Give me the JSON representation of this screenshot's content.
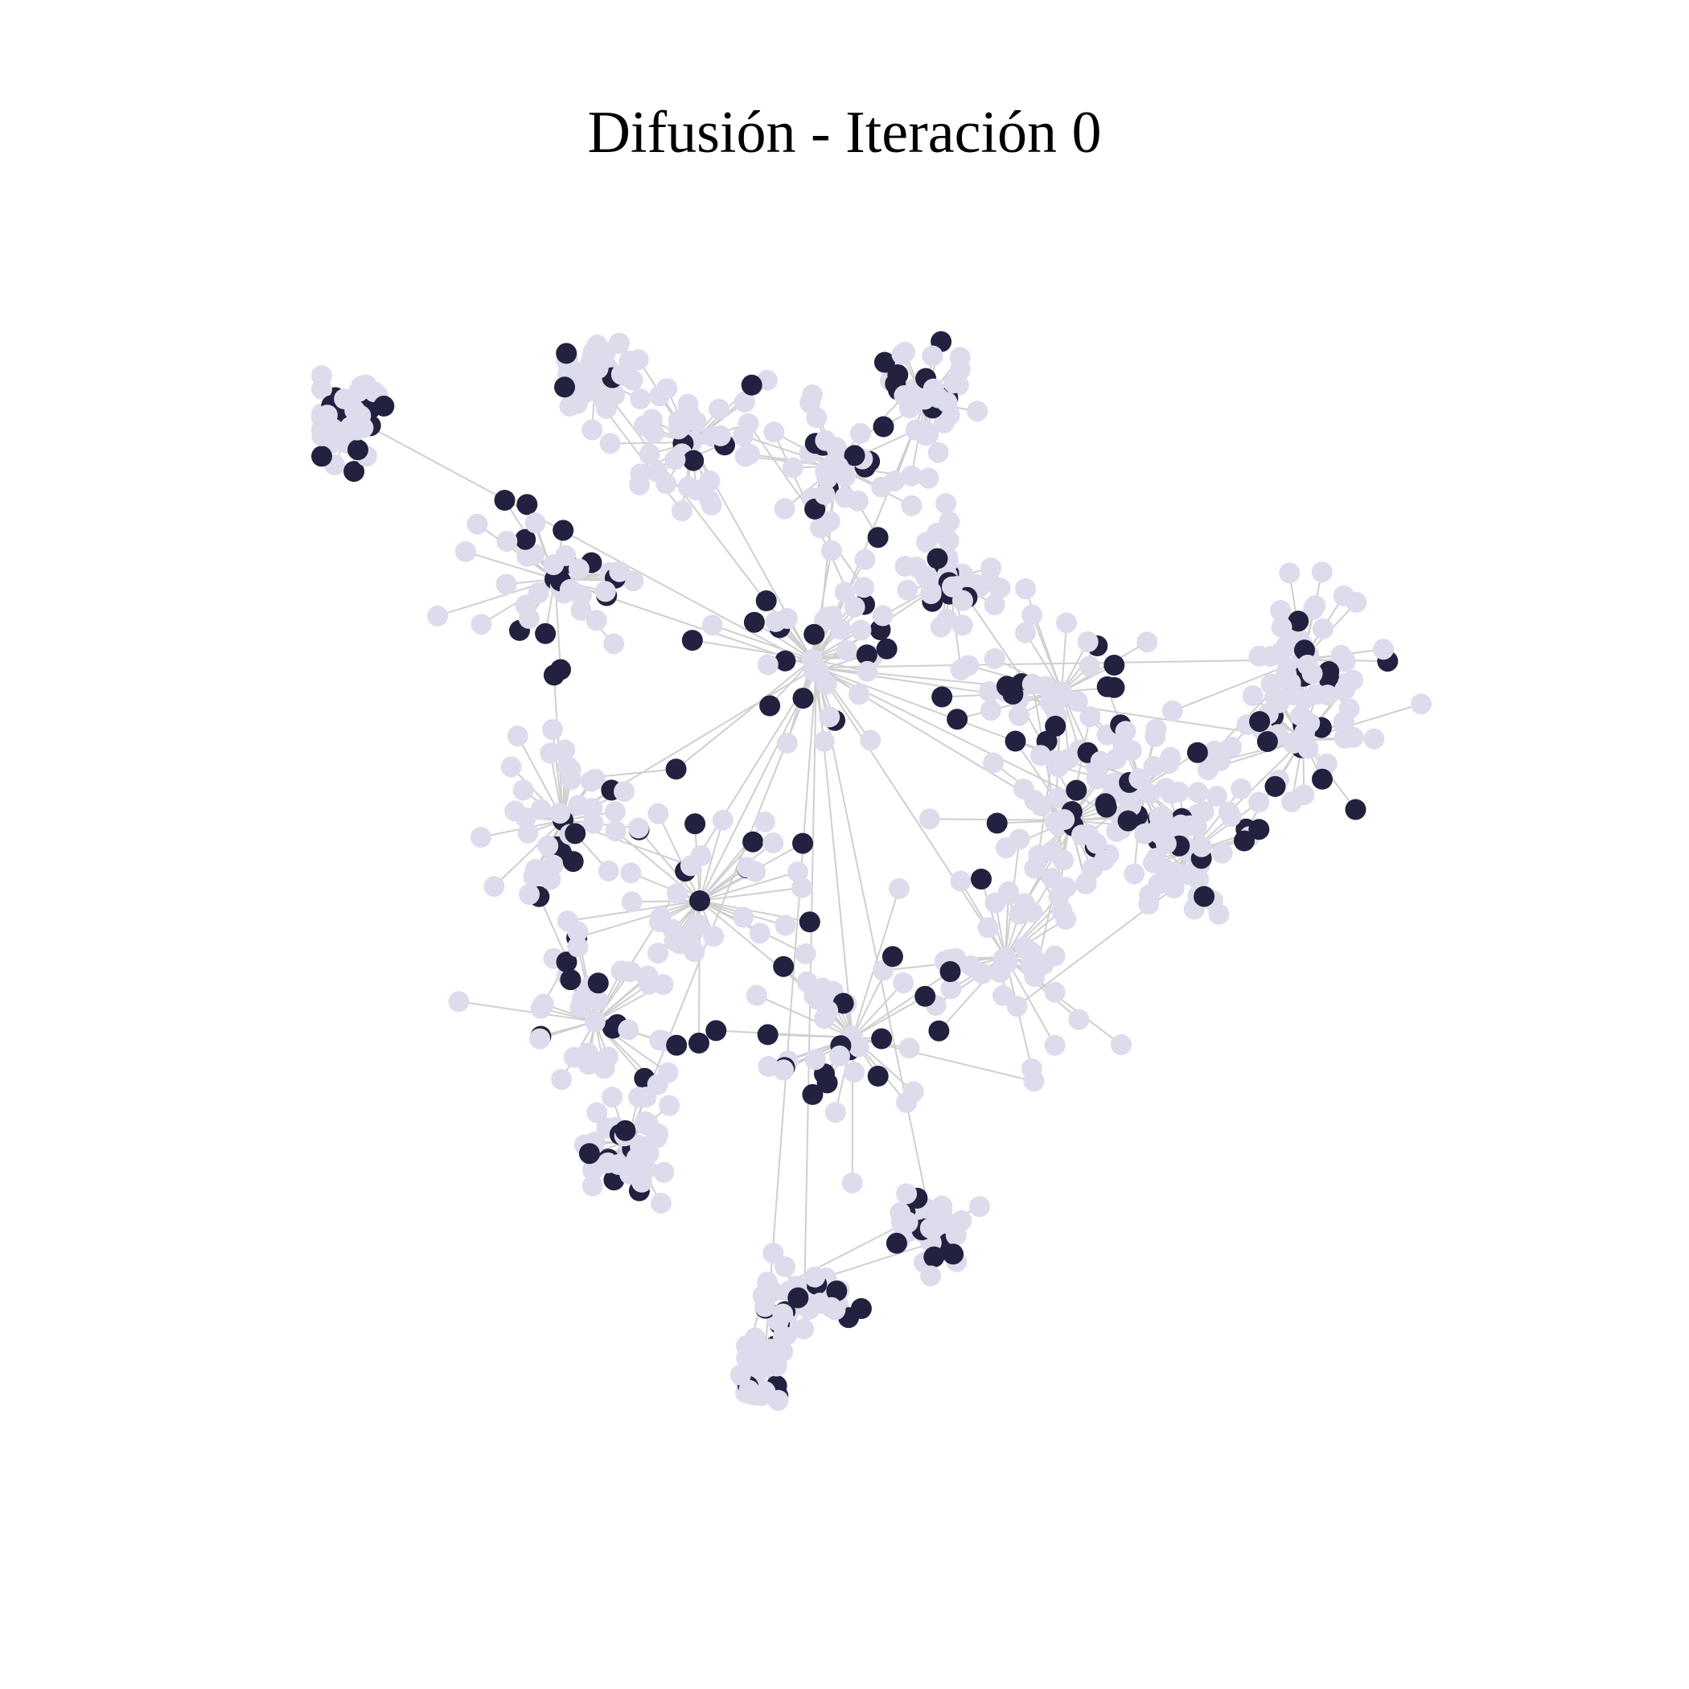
{
  "title": "Difusión - Iteración 0",
  "legend": {
    "inactive_color": "#dcdcec",
    "active_color": "#22213f",
    "edge_color": "#cfcfcf"
  },
  "network": {
    "layout": "force-directed",
    "node_count_approx": 900,
    "inactive_fraction": 0.78,
    "active_fraction": 0.22
  }
}
